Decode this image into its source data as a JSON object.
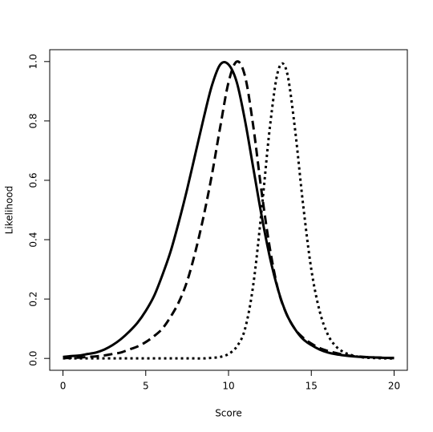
{
  "chart_data": {
    "type": "line",
    "xlabel": "Score",
    "ylabel": "Likelihood",
    "x": [
      0,
      0.5,
      1,
      1.5,
      2,
      2.5,
      3,
      3.5,
      4,
      4.5,
      5,
      5.5,
      6,
      6.5,
      7,
      7.5,
      8,
      8.5,
      9,
      9.5,
      10,
      10.5,
      11,
      11.5,
      12,
      12.5,
      13,
      13.5,
      14,
      14.5,
      15,
      15.5,
      16,
      16.5,
      17,
      17.5,
      18,
      18.5,
      19,
      19.5,
      20
    ],
    "series": [
      {
        "color": "#000000",
        "style": "solid",
        "values": [
          0.005,
          0.008,
          0.01,
          0.015,
          0.02,
          0.03,
          0.045,
          0.065,
          0.09,
          0.12,
          0.16,
          0.21,
          0.28,
          0.36,
          0.46,
          0.57,
          0.69,
          0.81,
          0.92,
          0.99,
          0.99,
          0.93,
          0.8,
          0.64,
          0.48,
          0.34,
          0.23,
          0.15,
          0.1,
          0.065,
          0.045,
          0.03,
          0.02,
          0.014,
          0.01,
          0.007,
          0.005,
          0.004,
          0.003,
          0.002,
          0.002
        ]
      },
      {
        "color": "#000000",
        "style": "dashed",
        "values": [
          0.001,
          0.002,
          0.003,
          0.005,
          0.007,
          0.01,
          0.015,
          0.02,
          0.03,
          0.04,
          0.055,
          0.075,
          0.1,
          0.14,
          0.19,
          0.26,
          0.36,
          0.48,
          0.62,
          0.78,
          0.93,
          1.0,
          0.95,
          0.78,
          0.56,
          0.37,
          0.23,
          0.15,
          0.1,
          0.07,
          0.05,
          0.035,
          0.025,
          0.018,
          0.012,
          0.008,
          0.006,
          0.004,
          0.003,
          0.002,
          0.001
        ]
      },
      {
        "color": "#000000",
        "style": "dotted",
        "values": [
          0,
          0,
          0,
          0,
          0,
          0,
          0,
          0,
          0,
          0,
          0,
          0,
          0,
          0,
          0,
          0,
          0,
          0,
          0.002,
          0.005,
          0.015,
          0.04,
          0.1,
          0.25,
          0.5,
          0.78,
          0.97,
          0.97,
          0.78,
          0.52,
          0.3,
          0.16,
          0.08,
          0.04,
          0.02,
          0.01,
          0.004,
          0.002,
          0.001,
          0,
          0
        ]
      }
    ],
    "xlim": [
      -0.8,
      20.8
    ],
    "xticks": [
      0,
      5,
      10,
      15,
      20
    ],
    "ylim": [
      -0.04,
      1.04
    ],
    "yticks": [
      {
        "value": 0,
        "label": "0.0"
      },
      {
        "value": 0.2,
        "label": "0.2"
      },
      {
        "value": 0.4,
        "label": "0.4"
      },
      {
        "value": 0.6,
        "label": "0.6"
      },
      {
        "value": 0.8,
        "label": "0.8"
      },
      {
        "value": 1,
        "label": "1.0"
      }
    ]
  }
}
